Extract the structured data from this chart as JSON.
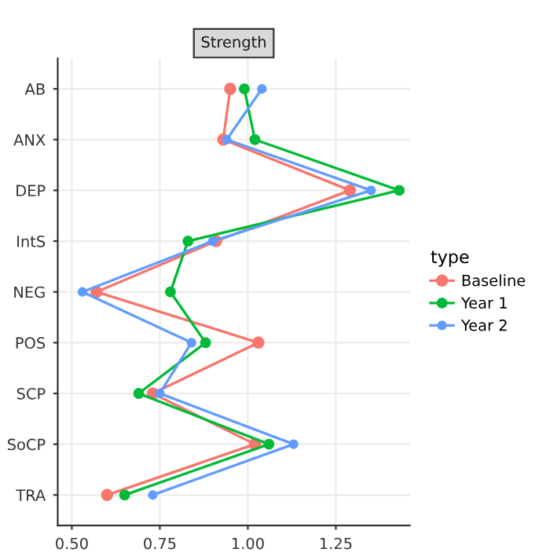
{
  "chart_data": {
    "type": "line",
    "title": "Strength",
    "categories": [
      "AB",
      "ANX",
      "DEP",
      "IntS",
      "NEG",
      "POS",
      "SCP",
      "SoCP",
      "TRA"
    ],
    "orientation": "horizontal",
    "series": [
      {
        "name": "Baseline",
        "color": "#f8766d",
        "values": [
          0.95,
          0.93,
          1.29,
          0.91,
          0.57,
          1.03,
          0.73,
          1.02,
          0.6
        ]
      },
      {
        "name": "Year 1",
        "color": "#00ba38",
        "values": [
          0.99,
          1.02,
          1.43,
          0.83,
          0.78,
          0.88,
          0.69,
          1.06,
          0.65
        ]
      },
      {
        "name": "Year 2",
        "color": "#619cff",
        "values": [
          1.04,
          0.94,
          1.35,
          0.9,
          0.53,
          0.84,
          0.75,
          1.13,
          0.73
        ]
      }
    ],
    "legend_title": "type",
    "legend": "right",
    "xlim": [
      0.46,
      1.46
    ],
    "xticks": [
      {
        "value": 0.5,
        "label": "0.50"
      },
      0.75,
      {
        "value": 1.0,
        "label": "1.00"
      },
      1.25
    ],
    "grid": true,
    "marker": "circle",
    "line_style": "solid"
  }
}
